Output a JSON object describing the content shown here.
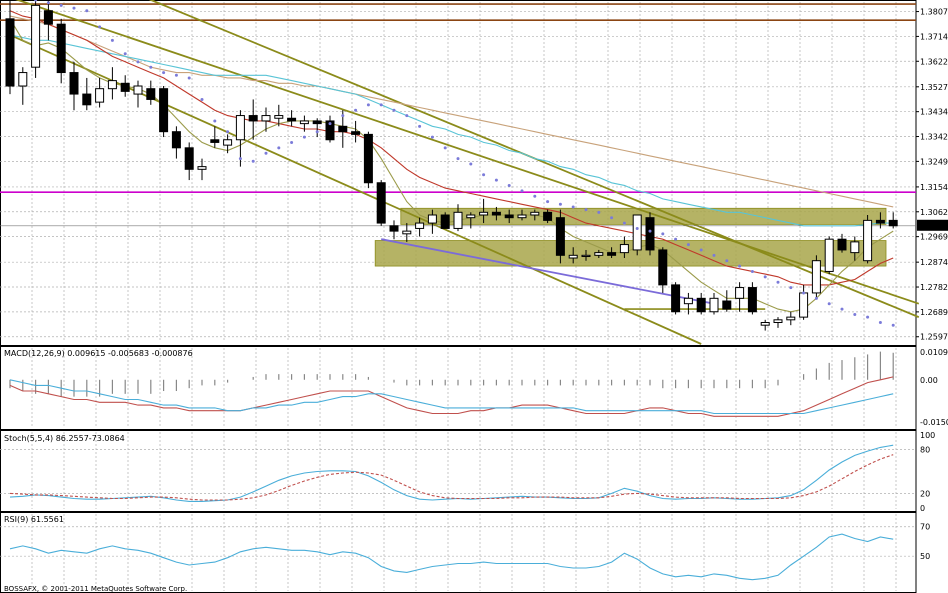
{
  "chart_data": [
    {
      "type": "candlestick",
      "panel": "price",
      "ylim": [
        1.257,
        1.385
      ],
      "grid": true,
      "tick_labels": [
        "1.38070",
        "1.37145",
        "1.36220",
        "1.35270",
        "1.34345",
        "1.33420",
        "1.32495",
        "1.31545",
        "1.30620",
        "1.29695",
        "1.28745",
        "1.27820",
        "1.26895",
        "1.25970"
      ],
      "current_price_label": "1.30099",
      "horizontal_lines": [
        {
          "y": 1.3835,
          "color": "#8b4513"
        },
        {
          "y": 1.3775,
          "color": "#8b4513"
        },
        {
          "y": 1.3135,
          "color": "#cc00cc"
        }
      ],
      "zones": [
        {
          "y0": 1.3015,
          "y1": 1.3075,
          "color": "#a8a64a"
        },
        {
          "y0": 1.286,
          "y1": 1.2955,
          "color": "#a8a64a"
        }
      ],
      "candles": [
        [
          1.378,
          1.385,
          1.35,
          1.353
        ],
        [
          1.353,
          1.36,
          1.346,
          1.358
        ],
        [
          1.36,
          1.385,
          1.356,
          1.383
        ],
        [
          1.381,
          1.385,
          1.37,
          1.376
        ],
        [
          1.376,
          1.378,
          1.354,
          1.358
        ],
        [
          1.358,
          1.362,
          1.344,
          1.35
        ],
        [
          1.35,
          1.356,
          1.344,
          1.346
        ],
        [
          1.347,
          1.356,
          1.345,
          1.352
        ],
        [
          1.352,
          1.36,
          1.348,
          1.355
        ],
        [
          1.354,
          1.357,
          1.349,
          1.351
        ],
        [
          1.35,
          1.355,
          1.345,
          1.353
        ],
        [
          1.352,
          1.355,
          1.346,
          1.348
        ],
        [
          1.352,
          1.353,
          1.334,
          1.336
        ],
        [
          1.336,
          1.338,
          1.326,
          1.33
        ],
        [
          1.33,
          1.332,
          1.318,
          1.322
        ],
        [
          1.322,
          1.326,
          1.318,
          1.323
        ],
        [
          1.333,
          1.338,
          1.33,
          1.332
        ],
        [
          1.331,
          1.335,
          1.328,
          1.333
        ],
        [
          1.333,
          1.344,
          1.323,
          1.342
        ],
        [
          1.342,
          1.348,
          1.333,
          1.34
        ],
        [
          1.34,
          1.345,
          1.336,
          1.342
        ],
        [
          1.341,
          1.346,
          1.338,
          1.342
        ],
        [
          1.341,
          1.344,
          1.338,
          1.34
        ],
        [
          1.339,
          1.342,
          1.336,
          1.34
        ],
        [
          1.34,
          1.341,
          1.334,
          1.339
        ],
        [
          1.34,
          1.342,
          1.332,
          1.333
        ],
        [
          1.338,
          1.344,
          1.33,
          1.336
        ],
        [
          1.336,
          1.34,
          1.332,
          1.335
        ],
        [
          1.335,
          1.336,
          1.315,
          1.317
        ],
        [
          1.317,
          1.318,
          1.301,
          1.302
        ],
        [
          1.301,
          1.303,
          1.296,
          1.299
        ],
        [
          1.298,
          1.302,
          1.295,
          1.299
        ],
        [
          1.3,
          1.304,
          1.297,
          1.302
        ],
        [
          1.302,
          1.307,
          1.298,
          1.305
        ],
        [
          1.305,
          1.306,
          1.3,
          1.3
        ],
        [
          1.3,
          1.309,
          1.299,
          1.306
        ],
        [
          1.304,
          1.306,
          1.3,
          1.305
        ],
        [
          1.305,
          1.311,
          1.302,
          1.306
        ],
        [
          1.306,
          1.308,
          1.303,
          1.305
        ],
        [
          1.305,
          1.307,
          1.302,
          1.304
        ],
        [
          1.304,
          1.307,
          1.303,
          1.305
        ],
        [
          1.305,
          1.307,
          1.303,
          1.306
        ],
        [
          1.306,
          1.307,
          1.302,
          1.303
        ],
        [
          1.304,
          1.307,
          1.287,
          1.29
        ],
        [
          1.289,
          1.293,
          1.287,
          1.29
        ],
        [
          1.29,
          1.292,
          1.288,
          1.29
        ],
        [
          1.29,
          1.292,
          1.289,
          1.291
        ],
        [
          1.291,
          1.293,
          1.289,
          1.29
        ],
        [
          1.291,
          1.297,
          1.289,
          1.294
        ],
        [
          1.292,
          1.305,
          1.29,
          1.305
        ],
        [
          1.304,
          1.306,
          1.29,
          1.292
        ],
        [
          1.292,
          1.293,
          1.276,
          1.279
        ],
        [
          1.279,
          1.28,
          1.268,
          1.269
        ],
        [
          1.272,
          1.276,
          1.268,
          1.274
        ],
        [
          1.274,
          1.276,
          1.268,
          1.269
        ],
        [
          1.269,
          1.276,
          1.268,
          1.274
        ],
        [
          1.273,
          1.277,
          1.269,
          1.27
        ],
        [
          1.274,
          1.28,
          1.269,
          1.278
        ],
        [
          1.278,
          1.28,
          1.268,
          1.269
        ],
        [
          1.264,
          1.266,
          1.262,
          1.265
        ],
        [
          1.265,
          1.267,
          1.263,
          1.266
        ],
        [
          1.266,
          1.269,
          1.264,
          1.267
        ],
        [
          1.267,
          1.279,
          1.266,
          1.276
        ],
        [
          1.276,
          1.29,
          1.274,
          1.288
        ],
        [
          1.284,
          1.297,
          1.283,
          1.296
        ],
        [
          1.296,
          1.298,
          1.291,
          1.292
        ],
        [
          1.291,
          1.297,
          1.288,
          1.295
        ],
        [
          1.288,
          1.305,
          1.287,
          1.303
        ],
        [
          1.303,
          1.306,
          1.3,
          1.302
        ],
        [
          1.303,
          1.306,
          1.3,
          1.301
        ]
      ],
      "sma_fast": [
        1.378,
        1.37,
        1.368,
        1.369,
        1.367,
        1.363,
        1.359,
        1.356,
        1.354,
        1.353,
        1.352,
        1.35,
        1.346,
        1.341,
        1.336,
        1.332,
        1.33,
        1.329,
        1.331,
        1.334,
        1.337,
        1.339,
        1.34,
        1.34,
        1.34,
        1.339,
        1.338,
        1.337,
        1.333,
        1.326,
        1.318,
        1.31,
        1.305,
        1.303,
        1.302,
        1.303,
        1.304,
        1.305,
        1.305,
        1.305,
        1.305,
        1.305,
        1.304,
        1.3,
        1.297,
        1.295,
        1.293,
        1.291,
        1.291,
        1.293,
        1.294,
        1.292,
        1.288,
        1.284,
        1.28,
        1.277,
        1.274,
        1.274,
        1.274,
        1.272,
        1.27,
        1.269,
        1.27,
        1.274,
        1.279,
        1.284,
        1.288,
        1.293,
        1.296,
        1.299
      ],
      "sma_mid": [
        1.381,
        1.379,
        1.378,
        1.376,
        1.374,
        1.372,
        1.37,
        1.367,
        1.364,
        1.362,
        1.36,
        1.358,
        1.356,
        1.353,
        1.35,
        1.347,
        1.344,
        1.342,
        1.341,
        1.34,
        1.34,
        1.339,
        1.338,
        1.337,
        1.337,
        1.336,
        1.336,
        1.335,
        1.333,
        1.33,
        1.326,
        1.322,
        1.319,
        1.317,
        1.315,
        1.314,
        1.313,
        1.312,
        1.311,
        1.31,
        1.309,
        1.308,
        1.307,
        1.306,
        1.304,
        1.302,
        1.301,
        1.3,
        1.299,
        1.298,
        1.297,
        1.296,
        1.294,
        1.292,
        1.29,
        1.288,
        1.286,
        1.285,
        1.284,
        1.283,
        1.282,
        1.28,
        1.279,
        1.279,
        1.279,
        1.28,
        1.281,
        1.284,
        1.287,
        1.289
      ],
      "sma_slow_cyan": [
        1.372,
        1.371,
        1.37,
        1.37,
        1.369,
        1.368,
        1.367,
        1.366,
        1.365,
        1.364,
        1.363,
        1.362,
        1.361,
        1.36,
        1.359,
        1.358,
        1.357,
        1.357,
        1.357,
        1.357,
        1.357,
        1.356,
        1.355,
        1.354,
        1.353,
        1.352,
        1.351,
        1.35,
        1.348,
        1.346,
        1.344,
        1.342,
        1.34,
        1.338,
        1.337,
        1.335,
        1.334,
        1.332,
        1.331,
        1.329,
        1.328,
        1.326,
        1.325,
        1.323,
        1.322,
        1.32,
        1.319,
        1.317,
        1.316,
        1.314,
        1.313,
        1.311,
        1.31,
        1.309,
        1.308,
        1.307,
        1.306,
        1.306,
        1.305,
        1.304,
        1.303,
        1.302,
        1.301,
        1.301,
        1.301,
        1.301,
        1.301,
        1.3015,
        1.302,
        1.302
      ],
      "sma_slow_brown": [
        1.379,
        1.378,
        1.377,
        1.376,
        1.374,
        1.372,
        1.37,
        1.368,
        1.366,
        1.364,
        1.362,
        1.36,
        1.359,
        1.358,
        1.358,
        1.357,
        1.357,
        1.356,
        1.356,
        1.355,
        1.355,
        1.354,
        1.354,
        1.353,
        1.353,
        1.352,
        1.351,
        1.35,
        1.349,
        1.348,
        1.347,
        1.346,
        1.345,
        1.344,
        1.343,
        1.342,
        1.341,
        1.34,
        1.339,
        1.338,
        1.337,
        1.336,
        1.335,
        1.334,
        1.333,
        1.332,
        1.331,
        1.33,
        1.329,
        1.328,
        1.327,
        1.326,
        1.325,
        1.324,
        1.323,
        1.322,
        1.321,
        1.32,
        1.319,
        1.318,
        1.317,
        1.316,
        1.315,
        1.314,
        1.313,
        1.312,
        1.311,
        1.31,
        1.309,
        1.308
      ],
      "parabolic_sar": [
        1.386,
        1.386,
        1.385,
        1.384,
        1.383,
        1.382,
        1.381,
        1.375,
        1.37,
        1.365,
        1.362,
        1.36,
        1.358,
        1.357,
        1.356,
        1.348,
        1.34,
        1.336,
        1.326,
        1.325,
        1.328,
        1.33,
        1.332,
        1.334,
        1.336,
        1.339,
        1.342,
        1.344,
        1.346,
        1.346,
        1.344,
        1.342,
        1.338,
        1.334,
        1.33,
        1.326,
        1.324,
        1.32,
        1.318,
        1.316,
        1.314,
        1.312,
        1.31,
        1.309,
        1.308,
        1.307,
        1.306,
        1.304,
        1.302,
        1.3,
        1.299,
        1.298,
        1.296,
        1.294,
        1.292,
        1.29,
        1.288,
        1.286,
        1.284,
        1.282,
        1.28,
        1.278,
        1.276,
        1.274,
        1.272,
        1.27,
        1.268,
        1.267,
        1.265,
        1.264
      ]
    },
    {
      "type": "line",
      "panel": "macd",
      "label": "MACD(12,26,9) 0.009615 -0.005683 -0.000876",
      "ylim": [
        -0.0175,
        0.012
      ],
      "tick_labels": [
        "0.010916",
        "0.00",
        "-0.01504"
      ],
      "histogram": [
        -0.003,
        -0.004,
        -0.005,
        -0.005,
        -0.006,
        -0.006,
        -0.006,
        -0.006,
        -0.005,
        -0.005,
        -0.005,
        -0.005,
        -0.004,
        -0.004,
        -0.003,
        -0.002,
        -0.002,
        -0.001,
        0.0,
        0.001,
        0.002,
        0.002,
        0.002,
        0.002,
        0.002,
        0.002,
        0.002,
        0.002,
        0.001,
        0.0,
        -0.001,
        -0.002,
        -0.002,
        -0.002,
        -0.002,
        -0.002,
        -0.002,
        -0.002,
        -0.002,
        -0.002,
        -0.002,
        -0.002,
        -0.002,
        -0.002,
        -0.002,
        -0.002,
        -0.002,
        -0.002,
        -0.002,
        -0.002,
        -0.002,
        -0.003,
        -0.003,
        -0.003,
        -0.003,
        -0.003,
        -0.003,
        -0.003,
        -0.003,
        -0.003,
        -0.002,
        0.0,
        0.002,
        0.004,
        0.006,
        0.007,
        0.008,
        0.009,
        0.01,
        0.0096
      ],
      "macd_line": [
        -0.002,
        -0.004,
        -0.004,
        -0.005,
        -0.006,
        -0.007,
        -0.007,
        -0.008,
        -0.008,
        -0.008,
        -0.009,
        -0.009,
        -0.01,
        -0.01,
        -0.011,
        -0.011,
        -0.011,
        -0.011,
        -0.011,
        -0.01,
        -0.009,
        -0.008,
        -0.007,
        -0.006,
        -0.005,
        -0.004,
        -0.004,
        -0.004,
        -0.004,
        -0.006,
        -0.008,
        -0.01,
        -0.011,
        -0.012,
        -0.012,
        -0.012,
        -0.011,
        -0.011,
        -0.01,
        -0.01,
        -0.009,
        -0.009,
        -0.009,
        -0.01,
        -0.011,
        -0.012,
        -0.012,
        -0.012,
        -0.012,
        -0.011,
        -0.01,
        -0.01,
        -0.011,
        -0.012,
        -0.012,
        -0.013,
        -0.013,
        -0.013,
        -0.013,
        -0.013,
        -0.013,
        -0.012,
        -0.011,
        -0.009,
        -0.007,
        -0.005,
        -0.003,
        -0.001,
        0.0,
        0.001
      ],
      "signal_line": [
        0.0,
        -0.001,
        -0.002,
        -0.002,
        -0.003,
        -0.004,
        -0.004,
        -0.005,
        -0.006,
        -0.007,
        -0.007,
        -0.008,
        -0.009,
        -0.009,
        -0.01,
        -0.01,
        -0.01,
        -0.011,
        -0.011,
        -0.01,
        -0.01,
        -0.009,
        -0.009,
        -0.008,
        -0.008,
        -0.007,
        -0.006,
        -0.006,
        -0.005,
        -0.005,
        -0.006,
        -0.007,
        -0.008,
        -0.009,
        -0.01,
        -0.01,
        -0.01,
        -0.01,
        -0.01,
        -0.01,
        -0.01,
        -0.01,
        -0.01,
        -0.01,
        -0.01,
        -0.011,
        -0.011,
        -0.011,
        -0.011,
        -0.011,
        -0.011,
        -0.011,
        -0.011,
        -0.011,
        -0.011,
        -0.012,
        -0.012,
        -0.012,
        -0.012,
        -0.012,
        -0.012,
        -0.012,
        -0.012,
        -0.011,
        -0.01,
        -0.009,
        -0.008,
        -0.007,
        -0.006,
        -0.005
      ]
    },
    {
      "type": "line",
      "panel": "stochastic",
      "label": "Stoch(5,5,4) 86.2557-73.0864",
      "ylim": [
        0,
        100
      ],
      "tick_labels": [
        "100",
        "80",
        "20",
        "0"
      ],
      "main": [
        15,
        16,
        18,
        17,
        15,
        13,
        12,
        12,
        13,
        14,
        15,
        16,
        14,
        11,
        9,
        9,
        10,
        11,
        15,
        22,
        30,
        38,
        44,
        48,
        50,
        51,
        51,
        50,
        44,
        35,
        25,
        17,
        12,
        11,
        12,
        13,
        12,
        13,
        14,
        15,
        16,
        15,
        15,
        14,
        13,
        13,
        14,
        20,
        27,
        23,
        17,
        13,
        12,
        13,
        13,
        14,
        13,
        12,
        12,
        13,
        14,
        17,
        25,
        38,
        52,
        63,
        72,
        78,
        83,
        86
      ],
      "signal": [
        20,
        19,
        18,
        18,
        17,
        16,
        15,
        14,
        13,
        13,
        14,
        15,
        15,
        14,
        12,
        11,
        11,
        11,
        12,
        14,
        18,
        24,
        31,
        37,
        42,
        46,
        48,
        49,
        48,
        45,
        38,
        30,
        22,
        17,
        14,
        13,
        13,
        13,
        13,
        14,
        14,
        15,
        15,
        15,
        14,
        14,
        14,
        16,
        19,
        20,
        19,
        17,
        15,
        14,
        14,
        14,
        14,
        13,
        13,
        13,
        13,
        14,
        17,
        22,
        30,
        40,
        50,
        59,
        67,
        73
      ]
    },
    {
      "type": "line",
      "panel": "rsi",
      "label": "RSI(9) 61.5561",
      "ylim": [
        25,
        80
      ],
      "tick_labels": [
        "70",
        "50"
      ],
      "values": [
        55,
        57,
        55,
        52,
        54,
        53,
        52,
        55,
        57,
        55,
        54,
        52,
        49,
        46,
        44,
        45,
        46,
        49,
        53,
        55,
        56,
        55,
        54,
        54,
        53,
        51,
        53,
        52,
        49,
        43,
        40,
        39,
        41,
        43,
        44,
        45,
        45,
        46,
        45,
        45,
        45,
        45,
        45,
        43,
        42,
        42,
        43,
        46,
        52,
        48,
        42,
        38,
        36,
        37,
        36,
        38,
        37,
        35,
        34,
        35,
        37,
        44,
        50,
        56,
        63,
        65,
        62,
        60,
        63,
        61.5
      ]
    }
  ],
  "panels": {
    "macd_label": "MACD(12,26,9) 0.009615 -0.005683 -0.000876",
    "stoch_label": "Stoch(5,5,4) 86.2557-73.0864",
    "rsi_label": "RSI(9) 61.5561"
  },
  "footer": {
    "copyright": "BOSSAFX, © 2001-2011 MetaQuotes Software Corp."
  },
  "colors": {
    "bullish_fill": "#ffffff",
    "bearish_fill": "#000000",
    "channel": "#8b8b1a",
    "zone": "#a8a64a",
    "resistance_brown": "#8b4513",
    "magenta": "#cc00cc",
    "sma_fast": "#9b9b4a",
    "sma_mid": "#c0392b",
    "sma_cyan": "#59c4d6",
    "sma_brown": "#c8a27a",
    "sar": "#7b7bd9",
    "trend_purple": "#7b6bd9",
    "macd_hist": "#888888",
    "macd_line": "#c0504d",
    "signal_line": "#4aaed9",
    "stoch_main": "#4aaed9",
    "stoch_signal": "#c0504d",
    "rsi": "#4aaed9"
  }
}
